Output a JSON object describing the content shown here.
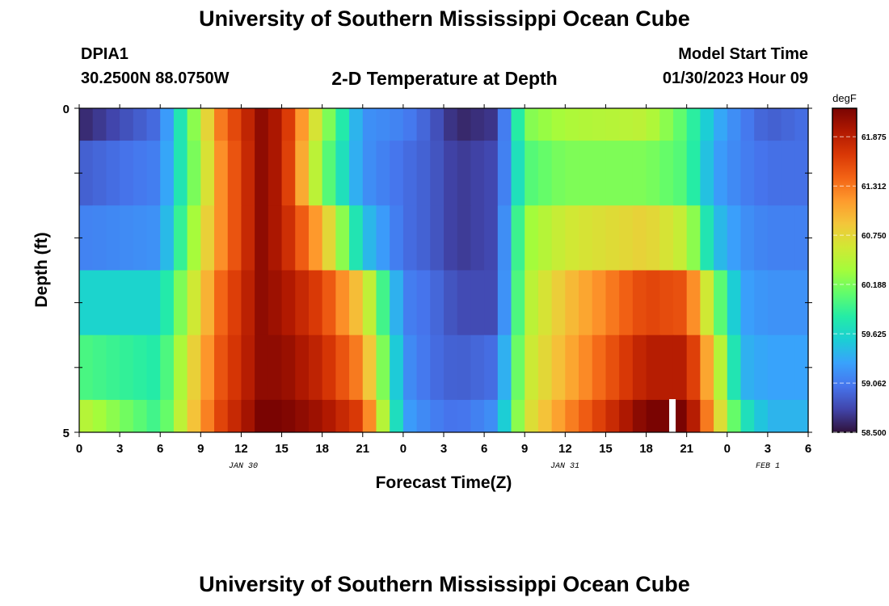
{
  "header": {
    "title": "University of Southern Mississippi Ocean Cube",
    "station": "DPIA1",
    "coords": "30.2500N  88.0750W",
    "subtitle": "2-D Temperature at Depth",
    "start_label": "Model Start Time",
    "start_value": "01/30/2023 Hour 09"
  },
  "footer": {
    "title": "University of Southern Mississippi Ocean Cube"
  },
  "chart_data": {
    "type": "heatmap",
    "title": "2-D Temperature at Depth",
    "xlabel": "Forecast Time(Z)",
    "ylabel": "Depth (ft)",
    "ylim": [
      0,
      5
    ],
    "y_tick_labels": [
      "0",
      "5"
    ],
    "x_tick_labels": [
      "0",
      "3",
      "6",
      "9",
      "12",
      "15",
      "18",
      "21",
      "0",
      "3",
      "6",
      "9",
      "12",
      "15",
      "18",
      "21",
      "0",
      "3",
      "6"
    ],
    "date_labels": [
      "JAN 30",
      "JAN 31",
      "FEB 1"
    ],
    "colorbar": {
      "unit": "degF",
      "min": 58.5,
      "max": 62.2,
      "tick_values": [
        58.5,
        59.062,
        59.625,
        60.188,
        60.75,
        61.312,
        61.875
      ],
      "tick_labels": [
        "58.500",
        "59.062",
        "59.625",
        "60.188",
        "60.750",
        "61.312",
        "61.875"
      ],
      "colormap": [
        "#30123b",
        "#4145ab",
        "#4675ed",
        "#39a2fc",
        "#1bcfd4",
        "#24eca6",
        "#61fc6c",
        "#a4fc3b",
        "#d1e834",
        "#f3c63a",
        "#fe9b2d",
        "#f36315",
        "#d93806",
        "#b11901",
        "#7a0402"
      ]
    },
    "depth_bands": [
      0,
      0.5,
      1.5,
      2.5,
      3.5,
      4.5,
      5
    ],
    "hours": [
      0,
      6,
      9,
      10.5,
      13.5,
      15,
      18,
      21,
      24,
      26,
      28,
      31,
      33,
      36,
      42,
      45,
      47,
      49,
      51,
      54
    ],
    "rows": [
      {
        "depth": "0.0-0.5",
        "values": [
          58.6,
          59.0,
          60.5,
          61.3,
          62.1,
          61.9,
          60.4,
          59.2,
          59.1,
          58.9,
          58.6,
          58.7,
          60.2,
          60.4,
          60.5,
          60.0,
          59.4,
          59.1,
          58.9,
          59.0
        ]
      },
      {
        "depth": "0.5-1.5",
        "values": [
          58.9,
          59.1,
          60.4,
          61.2,
          62.1,
          61.9,
          60.2,
          59.2,
          59.0,
          58.9,
          58.7,
          58.8,
          60.0,
          60.2,
          60.2,
          60.0,
          59.3,
          59.1,
          59.0,
          59.0
        ]
      },
      {
        "depth": "1.5-2.5",
        "values": [
          59.1,
          59.2,
          60.6,
          61.2,
          62.1,
          61.9,
          61.0,
          59.5,
          59.0,
          58.9,
          58.7,
          58.8,
          60.3,
          60.6,
          60.8,
          60.5,
          59.5,
          59.2,
          59.1,
          59.1
        ]
      },
      {
        "depth": "2.5-3.5",
        "values": [
          59.6,
          59.6,
          60.8,
          61.4,
          62.1,
          62.0,
          61.6,
          60.8,
          59.1,
          59.0,
          58.8,
          58.8,
          60.4,
          60.9,
          61.6,
          61.5,
          60.3,
          59.3,
          59.2,
          59.2
        ]
      },
      {
        "depth": "3.5-4.5",
        "values": [
          60.0,
          59.8,
          61.0,
          61.5,
          62.1,
          62.1,
          61.8,
          61.2,
          59.2,
          59.0,
          58.9,
          59.0,
          60.5,
          61.0,
          61.9,
          61.9,
          60.8,
          59.4,
          59.3,
          59.3
        ]
      },
      {
        "depth": "4.5-5.0",
        "values": [
          60.5,
          59.9,
          61.1,
          61.6,
          62.2,
          62.2,
          62.0,
          61.6,
          59.3,
          59.1,
          59.0,
          59.2,
          60.6,
          61.2,
          62.2,
          62.2,
          61.0,
          59.8,
          59.4,
          59.4
        ]
      }
    ]
  }
}
